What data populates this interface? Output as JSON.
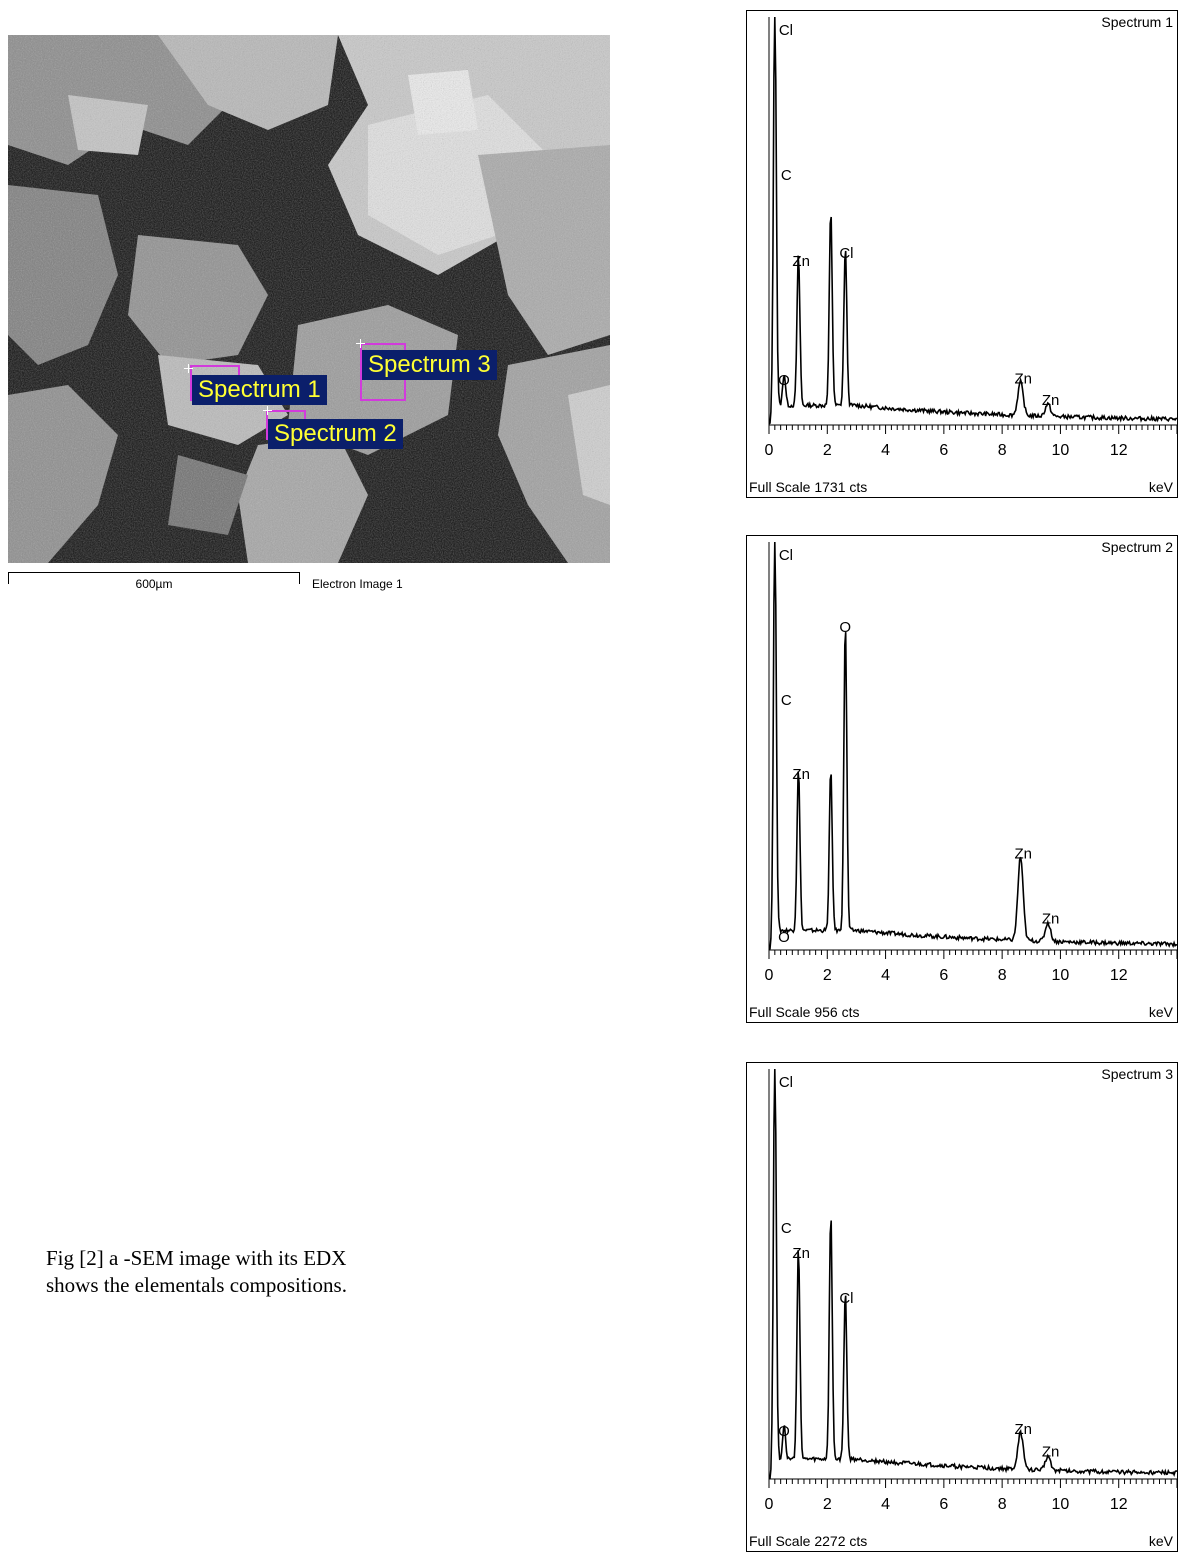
{
  "sem": {
    "spectrum_labels": [
      "Spectrum 1",
      "Spectrum 2",
      "Spectrum 3"
    ],
    "scale_label": "600µm",
    "image_label": "Electron Image 1"
  },
  "caption": {
    "line1": "Fig [2] a -SEM image with its EDX",
    "line2": "shows the elementals compositions."
  },
  "chart_data": [
    {
      "type": "line",
      "title": "Spectrum 1",
      "xlabel": "keV",
      "full_scale": "Full Scale 1731 cts",
      "xlim": [
        0,
        14
      ],
      "xticks": [
        "0",
        "2",
        "4",
        "6",
        "8",
        "10",
        "12"
      ],
      "peaks": [
        {
          "label": "Cl",
          "x": 0.2
        },
        {
          "label": "C",
          "x": 0.27
        },
        {
          "label": "O",
          "x": 0.52
        },
        {
          "label": "Zn",
          "x": 1.01
        },
        {
          "label": "Cl",
          "x": 2.62
        },
        {
          "label": "Zn",
          "x": 8.63
        },
        {
          "label": "Zn",
          "x": 9.57
        }
      ],
      "x": [
        0,
        0.2,
        0.27,
        0.35,
        0.52,
        0.7,
        1.01,
        1.3,
        1.74,
        2.12,
        2.3,
        2.62,
        2.82,
        3.5,
        5,
        6.5,
        8.0,
        8.63,
        8.9,
        9.57,
        10,
        11.5,
        12.5,
        14
      ],
      "y": [
        0,
        1000,
        230,
        40,
        78,
        20,
        370,
        20,
        30,
        480,
        40,
        390,
        30,
        20,
        14,
        10,
        12,
        82,
        10,
        30,
        8,
        5,
        4,
        3
      ]
    },
    {
      "type": "line",
      "title": "Spectrum 2",
      "xlabel": "keV",
      "full_scale": "Full Scale 956 cts",
      "xlim": [
        0,
        14
      ],
      "xticks": [
        "0",
        "2",
        "4",
        "6",
        "8",
        "10",
        "12"
      ],
      "peaks": [
        {
          "label": "Cl",
          "x": 0.2
        },
        {
          "label": "C",
          "x": 0.27
        },
        {
          "label": "O",
          "x": 0.52
        },
        {
          "label": "Zn",
          "x": 1.01
        },
        {
          "label": "O",
          "x": 2.62
        },
        {
          "label": "Zn",
          "x": 8.63
        },
        {
          "label": "Zn",
          "x": 9.57
        }
      ],
      "x": [
        0,
        0.2,
        0.27,
        0.35,
        0.52,
        0.7,
        1.01,
        1.3,
        1.74,
        2.12,
        2.3,
        2.62,
        2.82,
        3.5,
        5,
        6.5,
        8.0,
        8.63,
        8.9,
        9.57,
        10,
        11.5,
        12.5,
        14
      ],
      "y": [
        0,
        1000,
        620,
        60,
        55,
        25,
        400,
        30,
        45,
        395,
        45,
        760,
        40,
        35,
        30,
        22,
        25,
        205,
        22,
        45,
        15,
        8,
        6,
        4
      ]
    },
    {
      "type": "line",
      "title": "Spectrum 3",
      "xlabel": "keV",
      "full_scale": "Full Scale 2272 cts",
      "xlim": [
        0,
        14
      ],
      "xticks": [
        "0",
        "2",
        "4",
        "6",
        "8",
        "10",
        "12"
      ],
      "peaks": [
        {
          "label": "Cl",
          "x": 0.2
        },
        {
          "label": "C",
          "x": 0.27
        },
        {
          "label": "O",
          "x": 0.52
        },
        {
          "label": "Zn",
          "x": 1.01
        },
        {
          "label": "Cl",
          "x": 2.62
        },
        {
          "label": "Zn",
          "x": 8.63
        },
        {
          "label": "Zn",
          "x": 9.57
        }
      ],
      "x": [
        0,
        0.2,
        0.27,
        0.35,
        0.52,
        0.7,
        1.01,
        1.3,
        1.74,
        2.12,
        2.3,
        2.62,
        2.82,
        3.5,
        5,
        6.5,
        8.0,
        8.63,
        8.9,
        9.57,
        10,
        11.5,
        12.5,
        14
      ],
      "y": [
        0,
        1000,
        320,
        40,
        85,
        22,
        520,
        25,
        40,
        600,
        45,
        410,
        30,
        22,
        16,
        12,
        13,
        90,
        11,
        35,
        9,
        5,
        4,
        3
      ]
    }
  ]
}
